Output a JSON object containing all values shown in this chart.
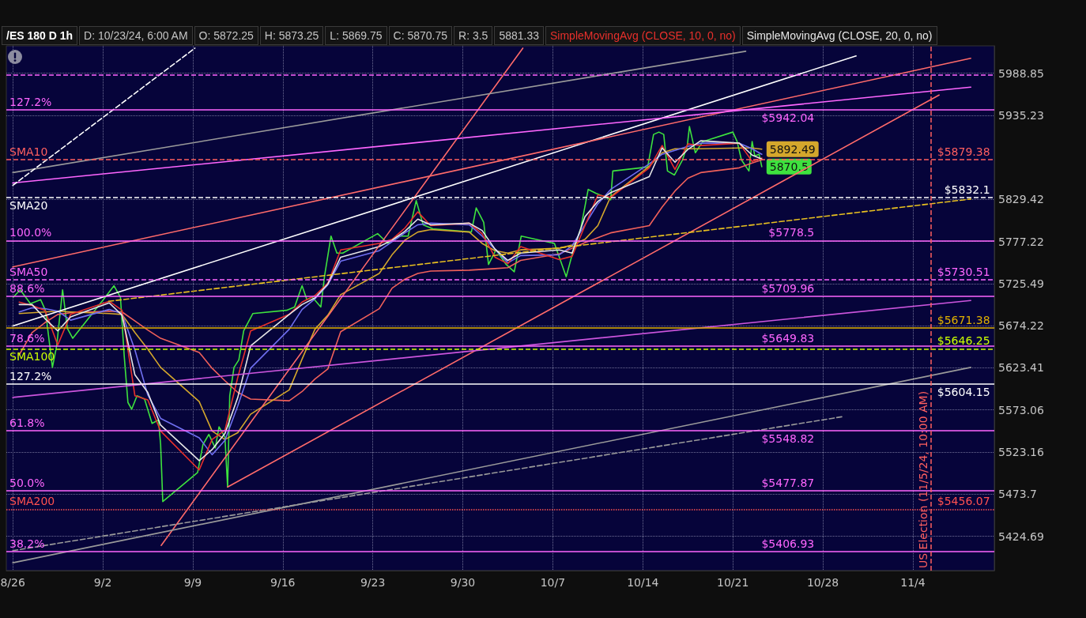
{
  "chart_data": {
    "type": "line",
    "title": "/ES 180 D 1h",
    "x": [
      "--08-26T12:00",
      "--08-27T12:00",
      "--08-28T12:00",
      "--08-29T12:00",
      "--08-30T12:00",
      "--09-02T12:00",
      "--09-03T12:00",
      "--09-04T12:00",
      "--09-05T12:00",
      "--09-06T12:00",
      "--09-09T12:00",
      "--09-10T12:00",
      "--09-11T12:00",
      "--09-12T12:00",
      "--09-13T12:00",
      "--09-16T12:00",
      "--09-17T12:00",
      "--09-18T12:00",
      "--09-19T12:00",
      "--09-20T12:00",
      "--09-23T12:00",
      "--09-24T12:00",
      "--09-25T12:00",
      "--09-26T12:00",
      "--09-27T12:00",
      "--09-30T12:00",
      "--10-01T12:00",
      "--10-02T12:00",
      "--10-03T12:00",
      "--10-04T12:00",
      "--10-07T12:00",
      "--10-08T12:00",
      "--10-09T12:00",
      "--10-10T12:00",
      "--10-11T12:00",
      "--10-14T12:00",
      "--10-15T12:00",
      "--10-16T12:00",
      "--10-17T12:00",
      "--10-18T12:00",
      "--10-21T12:00",
      "--10-22T12:00",
      "--10-23T06:00"
    ],
    "series": [
      {
        "color": "#3ee23e",
        "x": [
          "--08-26T01:00",
          "--08-26T14:00",
          "--08-27T09:00",
          "--08-28T04:00",
          "--08-28T13:00",
          "--08-29T02:00",
          "--08-29T10:00",
          "--08-29T21:00",
          "--08-30T06:00",
          "--08-30T16:00",
          "--09-02T01:00",
          "--09-02T21:00",
          "--09-03T09:00",
          "--09-03T16:00",
          "--09-03T23:00",
          "--09-04T06:00",
          "--09-04T16:00",
          "--09-05T06:00",
          "--09-05T20:00",
          "--09-06T08:00",
          "--09-06T12:00",
          "--09-06T14:00",
          "--09-06T16:00",
          "--09-09T09:00",
          "--09-09T19:00",
          "--09-10T06:00",
          "--09-10T18:00",
          "--09-11T01:00",
          "--09-11T12:00",
          "--09-11T17:00",
          "--09-11T21:00",
          "--09-12T05:00",
          "--09-12T14:00",
          "--09-12T23:00",
          "--09-13T16:00",
          "--09-16T07:00",
          "--09-16T22:00",
          "--09-17T12:00",
          "--09-17T21:00",
          "--09-18T07:00",
          "--09-18T23:00",
          "--09-19T06:00",
          "--09-19T18:00",
          "--09-20T05:00",
          "--09-20T16:00",
          "--09-23T09:00",
          "--09-24T04:00",
          "--09-24T23:00",
          "--09-25T18:00",
          "--09-26T09:00",
          "--09-26T22:00",
          "--09-27T16:00",
          "--09-30T16:00",
          "--10-01T01:00",
          "--10-01T15:00",
          "--10-02T00:00",
          "--10-02T14:00",
          "--10-03T09:00",
          "--10-04T00:00",
          "--10-04T13:00",
          "--10-07T03:00",
          "--10-08T01:00",
          "--10-08T14:00",
          "--10-09T04:00",
          "--10-09T18:00",
          "--10-10T09:00",
          "--10-11T00:00",
          "--10-11T12:00",
          "--10-11T16:00",
          "--10-14T09:00",
          "--10-14T20:00",
          "--10-15T06:00",
          "--10-15T15:00",
          "--10-15T22:00",
          "--10-16T11:00",
          "--10-17T02:00",
          "--10-17T11:00",
          "--10-17T15:00",
          "--10-18T02:00",
          "--10-18T16:00",
          "--10-21T00:00",
          "--10-21T08:00",
          "--10-21T16:00",
          "--10-22T06:00",
          "--10-22T12:00",
          "--10-22T17:00",
          "--10-23T01:00",
          "--10-23T06:00"
        ],
        "values": [
          5709,
          5718,
          5701,
          5706,
          5693,
          5624,
          5650,
          5718,
          5671,
          5659,
          5706,
          5723,
          5709,
          5638,
          5582,
          5574,
          5590,
          5586,
          5557,
          5561,
          5532,
          5499,
          5465,
          5499,
          5532,
          5544,
          5528,
          5553,
          5541,
          5482,
          5590,
          5624,
          5633,
          5668,
          5689,
          5693,
          5697,
          5723,
          5706,
          5709,
          5697,
          5735,
          5784,
          5763,
          5763,
          5787,
          5775,
          5784,
          5784,
          5828,
          5798,
          5793,
          5789,
          5819,
          5801,
          5749,
          5767,
          5749,
          5740,
          5784,
          5775,
          5734,
          5766,
          5793,
          5842,
          5837,
          5833,
          5829,
          5865,
          5870,
          5911,
          5914,
          5911,
          5865,
          5860,
          5879,
          5897,
          5921,
          5888,
          5902,
          5914,
          5902,
          5879,
          5865,
          5902,
          5884,
          5886,
          5870.5
        ],
        "value_labels": [
          null,
          null,
          null,
          null,
          null,
          null,
          null,
          null,
          null,
          null,
          null,
          null,
          null,
          null,
          null,
          null,
          null,
          null,
          null,
          null,
          null,
          null,
          null,
          null,
          null,
          null,
          null,
          null,
          null,
          null,
          null,
          null,
          null,
          null,
          null,
          null,
          null,
          null,
          null,
          null,
          null,
          null,
          null,
          null,
          null,
          null,
          null,
          null,
          null,
          null,
          null,
          null,
          null,
          null,
          null,
          null,
          null,
          null,
          null,
          null,
          null,
          null,
          null,
          null,
          null,
          null,
          null,
          null,
          null,
          null,
          null,
          null,
          null,
          null,
          null,
          null,
          null,
          null,
          null,
          null,
          null,
          null,
          null,
          null,
          null,
          null,
          null,
          "5870.5"
        ]
      },
      {
        "color": "#f0605a",
        "values": [
          5639,
          5666,
          5678,
          5688,
          5690,
          5692,
          5691,
          5680,
          5669,
          5659,
          5642,
          5623,
          5608,
          5594,
          5586,
          5584,
          5595,
          5610,
          5622,
          5667,
          5695,
          5720,
          5731,
          5738,
          5741,
          5742,
          5743,
          5744,
          5745,
          5754,
          5762,
          5769,
          5776,
          5782,
          5788,
          5797,
          5820,
          5840,
          5856,
          5863,
          5869,
          5875,
          5879
        ]
      },
      {
        "color": "#d4a72c",
        "values": [
          5689,
          5690,
          5691,
          5692,
          5691,
          5689,
          5688,
          5666,
          5646,
          5624,
          5583,
          5548,
          5538,
          5546,
          5568,
          5597,
          5634,
          5670,
          5687,
          5712,
          5738,
          5761,
          5779,
          5789,
          5792,
          5789,
          5775,
          5766,
          5763,
          5767,
          5769,
          5773,
          5780,
          5797,
          5833,
          5871,
          5888,
          5893,
          5893,
          5893,
          5894,
          5894,
          5892.49
        ],
        "value_labels": [
          null,
          null,
          null,
          null,
          null,
          null,
          null,
          null,
          null,
          null,
          null,
          null,
          null,
          null,
          null,
          null,
          null,
          null,
          null,
          null,
          null,
          null,
          null,
          null,
          null,
          null,
          null,
          null,
          null,
          null,
          null,
          null,
          null,
          null,
          null,
          null,
          null,
          null,
          null,
          null,
          null,
          null,
          "5892.49"
        ]
      },
      {
        "color": "#6f6ff0",
        "values": [
          5691,
          5696,
          5695,
          5692,
          5681,
          5694,
          5689,
          5645,
          5591,
          5563,
          5540,
          5520,
          5537,
          5578,
          5623,
          5670,
          5694,
          5707,
          5724,
          5753,
          5766,
          5777,
          5788,
          5798,
          5800,
          5798,
          5784,
          5768,
          5751,
          5760,
          5761,
          5772,
          5798,
          5824,
          5842,
          5874,
          5886,
          5891,
          5896,
          5900,
          5900,
          5893,
          5886
        ]
      },
      {
        "name": "SimpleMovingAvg (CLOSE, 10, 0, no)",
        "color": "#e8302c",
        "values": [
          5703,
          5699,
          5693,
          5651,
          5688,
          5704,
          5693,
          5590,
          5585,
          5548,
          5502,
          5538,
          5549,
          5612,
          5668,
          5688,
          5703,
          5711,
          5726,
          5767,
          5775,
          5780,
          5794,
          5814,
          5797,
          5800,
          5787,
          5758,
          5750,
          5771,
          5755,
          5759,
          5797,
          5835,
          5832,
          5869,
          5897,
          5867,
          5899,
          5897,
          5900,
          5877,
          5881.33
        ]
      },
      {
        "name": "SimpleMovingAvg (CLOSE, 20, 0, no)",
        "color": "#e6e6e6",
        "values": [
          5700,
          5700,
          5683,
          5668,
          5685,
          5702,
          5687,
          5615,
          5594,
          5555,
          5513,
          5526,
          5545,
          5588,
          5650,
          5688,
          5700,
          5708,
          5725,
          5758,
          5771,
          5779,
          5790,
          5805,
          5798,
          5800,
          5791,
          5768,
          5754,
          5763,
          5767,
          5763,
          5808,
          5827,
          5838,
          5858,
          5894,
          5876,
          5892,
          5903,
          5900,
          5885,
          5880
        ]
      },
      {
        "color": "#ffffff",
        "x": [
          "--08-26T00:00",
          "--10-30T14:00"
        ],
        "values": [
          5674,
          6011
        ]
      },
      {
        "color": "#ff6a6a",
        "x": [
          "--08-26T00:00",
          "--11-08T12:00"
        ],
        "values": [
          5746,
          6008
        ]
      },
      {
        "color": "#ff6a6a",
        "x": [
          "--09-11T17:00",
          "--11-06T01:00"
        ],
        "values": [
          5482,
          5961
        ]
      },
      {
        "color": "#ff6a6a",
        "x": [
          "--09-06T13:00",
          "--10-04T16:00"
        ],
        "values": [
          5414,
          6021
        ]
      },
      {
        "color": "#ff66ff",
        "x": [
          "--08-26T00:00",
          "--11-08T12:00"
        ],
        "values": [
          5850,
          5971
        ]
      },
      {
        "color": "#cc55dd",
        "x": [
          "--08-26T00:00",
          "--11-08T12:00"
        ],
        "values": [
          5588,
          5705
        ]
      },
      {
        "color": "#9a9a9a",
        "x": [
          "--08-26T00:00",
          "--10-22T00:00"
        ],
        "values": [
          5863,
          6017
        ]
      },
      {
        "color": "#9a9a9a",
        "x": [
          "--08-26T00:00",
          "--11-08T12:00"
        ],
        "values": [
          5394,
          5624
        ]
      },
      {
        "color": "#9a9a9a",
        "line_style": "dashed",
        "x": [
          "--08-26T00:00",
          "--10-29T12:00"
        ],
        "values": [
          5408,
          5565
        ]
      },
      {
        "color": "#e8c020",
        "line_style": "dashed",
        "x": [
          "--09-02T11:00",
          "--11-08T12:00"
        ],
        "values": [
          5704,
          5830
        ]
      },
      {
        "color": "#ffffff",
        "line_style": "dashed",
        "x": [
          "--08-26T00:00",
          "--09-09T04:00"
        ],
        "values": [
          5847,
          6021
        ]
      }
    ],
    "ref_lines": [
      {
        "axis": "y",
        "value": 5987,
        "color": "#ff66ff",
        "line_style": "dashed"
      },
      {
        "axis": "y",
        "value": 5942.04,
        "color": "#ff66ff"
      },
      {
        "axis": "y",
        "value": 5879.38,
        "color": "#ff5f5f",
        "line_style": "dashed"
      },
      {
        "axis": "y",
        "value": 5832.1,
        "color": "#ffffff",
        "line_style": "dashed"
      },
      {
        "axis": "y",
        "value": 5778.5,
        "color": "#ff66ff"
      },
      {
        "axis": "y",
        "value": 5730.51,
        "color": "#ff66ff",
        "line_style": "dashed"
      },
      {
        "axis": "y",
        "value": 5709.96,
        "color": "#ff66ff"
      },
      {
        "axis": "y",
        "value": 5671.38,
        "color": "#e0b000"
      },
      {
        "axis": "y",
        "value": 5649.83,
        "color": "#ff66ff"
      },
      {
        "axis": "y",
        "value": 5646.25,
        "color": "#ccff00",
        "line_style": "dashed"
      },
      {
        "axis": "y",
        "value": 5604.15,
        "color": "#ffffff"
      },
      {
        "axis": "y",
        "value": 5548.82,
        "color": "#ff66ff"
      },
      {
        "axis": "y",
        "value": 5477.87,
        "color": "#ff66ff"
      },
      {
        "axis": "y",
        "value": 5456.07,
        "color": "#ff5050",
        "line_style": "dotted"
      },
      {
        "axis": "y",
        "value": 5406.93,
        "color": "#ff66ff"
      },
      {
        "axis": "x",
        "value": "--11-05T10:00",
        "label": "US Election (11/5/24, 10:00 AM)",
        "color": "#ff5f5f",
        "line_style": "dashed"
      }
    ],
    "annotations": [
      "D: 10/23/24, 6:00 AM",
      "O: 5872.25",
      "H: 5873.25",
      "L: 5869.75",
      "C: 5870.75",
      "R: 3.5",
      "5881.33",
      {
        "text": "127.2%",
        "x": "--08-25T12:00",
        "y": 5942.04
      },
      {
        "text": "SMA10",
        "x": "--08-25T12:00",
        "y": 5879.38
      },
      {
        "text": "SMA20",
        "x": "--08-25T12:00",
        "y": 5832.1
      },
      {
        "text": "100.0%",
        "x": "--08-25T12:00",
        "y": 5778.5
      },
      {
        "text": "SMA50",
        "x": "--08-25T12:00",
        "y": 5730.51
      },
      {
        "text": "88.6%",
        "x": "--08-25T12:00",
        "y": 5709.96
      },
      {
        "text": "78.6%",
        "x": "--08-25T12:00",
        "y": 5649.83
      },
      {
        "text": "SMA100",
        "x": "--08-25T12:00",
        "y": 5646.25
      },
      {
        "text": "127.2%",
        "x": "--08-25T12:00",
        "y": 5604.15
      },
      {
        "text": "61.8%",
        "x": "--08-25T12:00",
        "y": 5548.82
      },
      {
        "text": "50.0%",
        "x": "--08-25T12:00",
        "y": 5477.87
      },
      {
        "text": "SMA200",
        "x": "--08-25T12:00",
        "y": 5456.07
      },
      {
        "text": "38.2%",
        "x": "--08-25T12:00",
        "y": 5406.93
      },
      {
        "text": "$5942.04",
        "x": "--10-27T08:00",
        "y": 5942.04
      },
      {
        "text": "$5879.38",
        "x": "--11-10T00:00",
        "y": 5879.38
      },
      {
        "text": "$5832.1",
        "x": "--11-10T00:00",
        "y": 5832.1
      },
      {
        "text": "$5778.5",
        "x": "--10-27T08:00",
        "y": 5778.5
      },
      {
        "text": "$5730.51",
        "x": "--11-10T00:00",
        "y": 5730.51
      },
      {
        "text": "$5709.96",
        "x": "--10-27T08:00",
        "y": 5709.96
      },
      {
        "text": "$5671.38",
        "x": "--11-10T00:00",
        "y": 5671.38
      },
      {
        "text": "$5649.83",
        "x": "--10-27T08:00",
        "y": 5649.83
      },
      {
        "text": "$5646.25",
        "x": "--11-10T00:00",
        "y": 5646.25
      },
      {
        "text": "$5604.15",
        "x": "--11-10T00:00",
        "y": 5604.15
      },
      {
        "text": "$5548.82",
        "x": "--10-27T08:00",
        "y": 5548.82
      },
      {
        "text": "$5477.87",
        "x": "--10-27T08:00",
        "y": 5477.87
      },
      {
        "text": "$5456.07",
        "x": "--11-10T00:00",
        "y": 5456.07
      },
      {
        "text": "$5406.93",
        "x": "--10-27T08:00",
        "y": 5406.93
      }
    ],
    "xlim": [
      "--08-25T12:00",
      "--11-10T08:00"
    ],
    "xticks": [
      {
        "value": "--08-26",
        "label": "8/26"
      },
      {
        "value": "--09-02",
        "label": "9/2"
      },
      {
        "value": "--09-09",
        "label": "9/9"
      },
      {
        "value": "--09-16",
        "label": "9/16"
      },
      {
        "value": "--09-23",
        "label": "9/23"
      },
      {
        "value": "--09-30",
        "label": "9/30"
      },
      {
        "value": "--10-07",
        "label": "10/7"
      },
      {
        "value": "--10-14",
        "label": "10/14"
      },
      {
        "value": "--10-21",
        "label": "10/21"
      },
      {
        "value": "--10-28",
        "label": "10/28"
      },
      {
        "value": "--11-04",
        "label": "11/4"
      }
    ],
    "ylim": [
      5385,
      6024
    ],
    "yticks": [
      5424.69,
      5473.7,
      5523.16,
      5573.06,
      5623.41,
      5674.22,
      5725.49,
      5777.22,
      5829.42,
      5935.23,
      5988.85
    ],
    "log": "y",
    "grid": true,
    "legend": "top right"
  }
}
